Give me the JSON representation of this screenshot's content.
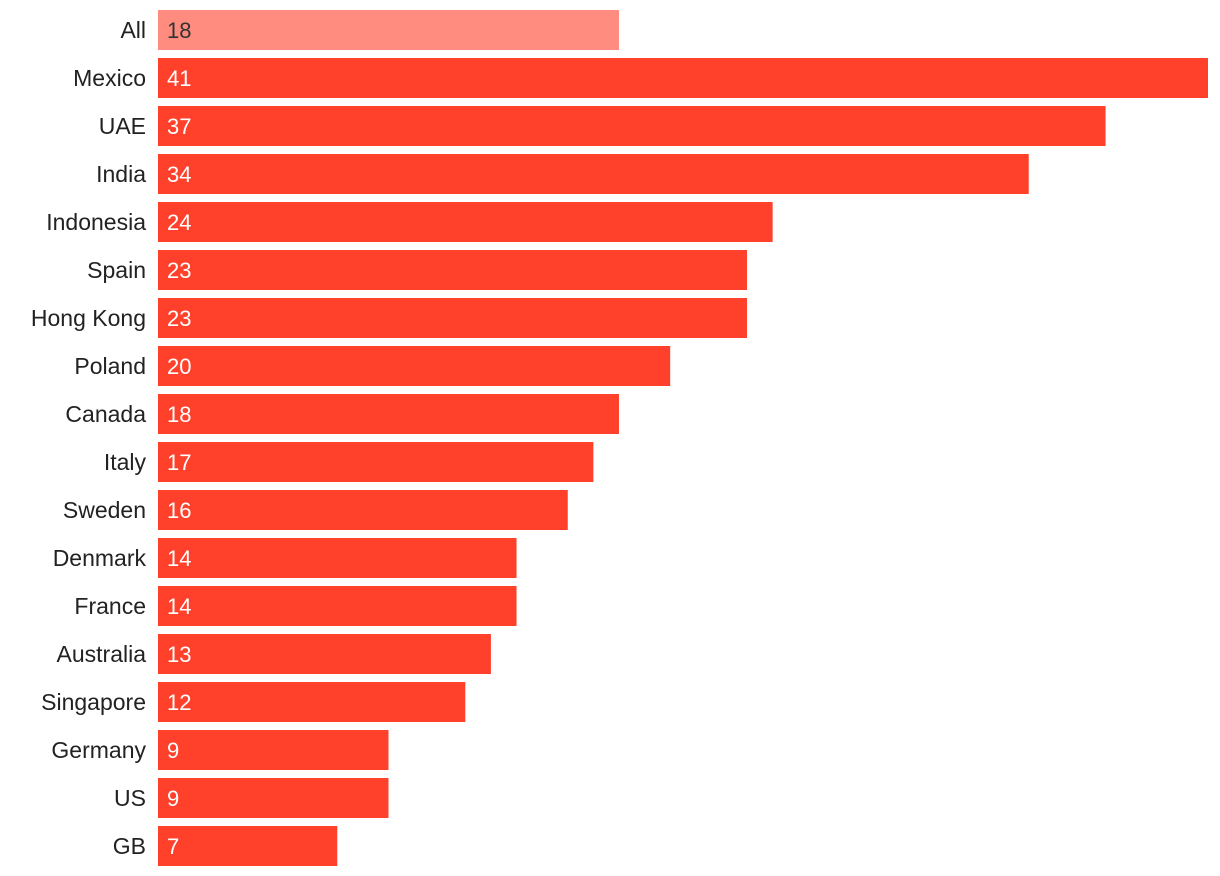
{
  "chart_data": {
    "type": "bar",
    "orientation": "horizontal",
    "categories": [
      "All",
      "Mexico",
      "UAE",
      "India",
      "Indonesia",
      "Spain",
      "Hong Kong",
      "Poland",
      "Canada",
      "Italy",
      "Sweden",
      "Denmark",
      "France",
      "Australia",
      "Singapore",
      "Germany",
      "US",
      "GB"
    ],
    "values": [
      18,
      41,
      37,
      34,
      24,
      23,
      23,
      20,
      18,
      17,
      16,
      14,
      14,
      13,
      12,
      9,
      9,
      7
    ],
    "highlight_category": "All",
    "title": "",
    "xlabel": "",
    "ylabel": "",
    "xlim": [
      0,
      41
    ],
    "grid": false,
    "legend": "none",
    "colors": {
      "bar": "#ff412c",
      "highlight_bar": "#ff8c7f",
      "value_text": "#ffffff",
      "highlight_value_text": "#333333",
      "category_text": "#222222"
    }
  }
}
